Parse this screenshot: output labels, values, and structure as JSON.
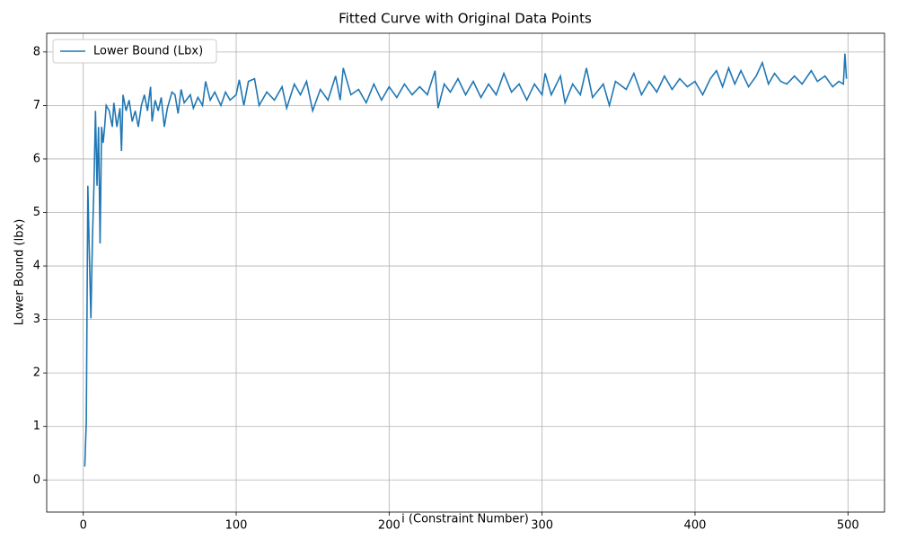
{
  "chart_data": {
    "type": "line",
    "title": "Fitted Curve with Original Data Points",
    "x_label": "i (Constraint Number)",
    "y_label": "Lower Bound (lbx)",
    "xlim": [
      -23.9,
      523.9
    ],
    "xticks": [
      0,
      100,
      200,
      300,
      400,
      500
    ],
    "ylim": [
      -0.6,
      8.35
    ],
    "yticks": [
      0,
      1,
      2,
      3,
      4,
      5,
      6,
      7,
      8
    ],
    "grid": true,
    "legend_position": "upper left",
    "x": [
      1,
      2,
      3,
      4,
      5,
      6,
      7,
      8,
      9,
      10,
      11,
      12,
      13,
      14,
      15,
      17,
      19,
      20,
      22,
      24,
      25,
      26,
      28,
      30,
      32,
      34,
      36,
      38,
      40,
      42,
      44,
      45,
      47,
      49,
      51,
      53,
      55,
      58,
      60,
      62,
      64,
      66,
      70,
      72,
      75,
      78,
      80,
      83,
      86,
      90,
      93,
      96,
      100,
      102,
      105,
      108,
      112,
      115,
      120,
      125,
      130,
      133,
      138,
      142,
      146,
      150,
      155,
      160,
      165,
      168,
      170,
      175,
      180,
      185,
      190,
      195,
      200,
      205,
      210,
      215,
      220,
      225,
      230,
      232,
      236,
      240,
      245,
      250,
      255,
      260,
      265,
      270,
      275,
      280,
      285,
      290,
      295,
      300,
      302,
      306,
      312,
      315,
      320,
      325,
      329,
      333,
      340,
      344,
      348,
      355,
      360,
      365,
      370,
      375,
      380,
      385,
      390,
      395,
      400,
      405,
      410,
      414,
      418,
      422,
      426,
      430,
      435,
      440,
      444,
      448,
      452,
      456,
      460,
      465,
      470,
      476,
      480,
      485,
      490,
      494,
      497,
      498,
      499
    ],
    "series": [
      {
        "name": "Lower Bound (Lbx)",
        "color": "#1f77b4",
        "values": [
          0.25,
          1.1,
          5.5,
          4.2,
          3.02,
          4.5,
          5.5,
          6.9,
          5.5,
          6.6,
          4.42,
          6.6,
          6.3,
          6.6,
          7.0,
          6.9,
          6.6,
          7.05,
          6.6,
          6.95,
          6.15,
          7.2,
          6.9,
          7.1,
          6.7,
          6.9,
          6.6,
          7.0,
          7.2,
          6.9,
          7.35,
          6.7,
          7.1,
          6.9,
          7.15,
          6.6,
          6.95,
          7.25,
          7.2,
          6.85,
          7.3,
          7.05,
          7.2,
          6.95,
          7.15,
          7.0,
          7.45,
          7.1,
          7.25,
          7.0,
          7.25,
          7.1,
          7.2,
          7.48,
          7.0,
          7.45,
          7.5,
          7.0,
          7.25,
          7.1,
          7.35,
          6.95,
          7.4,
          7.2,
          7.45,
          6.9,
          7.3,
          7.1,
          7.55,
          7.1,
          7.7,
          7.2,
          7.3,
          7.05,
          7.4,
          7.1,
          7.35,
          7.15,
          7.4,
          7.2,
          7.35,
          7.2,
          7.65,
          6.95,
          7.4,
          7.25,
          7.5,
          7.2,
          7.45,
          7.15,
          7.4,
          7.2,
          7.6,
          7.25,
          7.4,
          7.1,
          7.4,
          7.2,
          7.6,
          7.2,
          7.55,
          7.05,
          7.4,
          7.2,
          7.7,
          7.15,
          7.4,
          7.0,
          7.45,
          7.3,
          7.6,
          7.2,
          7.45,
          7.25,
          7.55,
          7.3,
          7.5,
          7.35,
          7.45,
          7.2,
          7.5,
          7.65,
          7.35,
          7.7,
          7.4,
          7.65,
          7.35,
          7.55,
          7.8,
          7.4,
          7.6,
          7.45,
          7.4,
          7.55,
          7.4,
          7.65,
          7.45,
          7.55,
          7.35,
          7.45,
          7.4,
          7.97,
          7.5
        ]
      }
    ]
  }
}
